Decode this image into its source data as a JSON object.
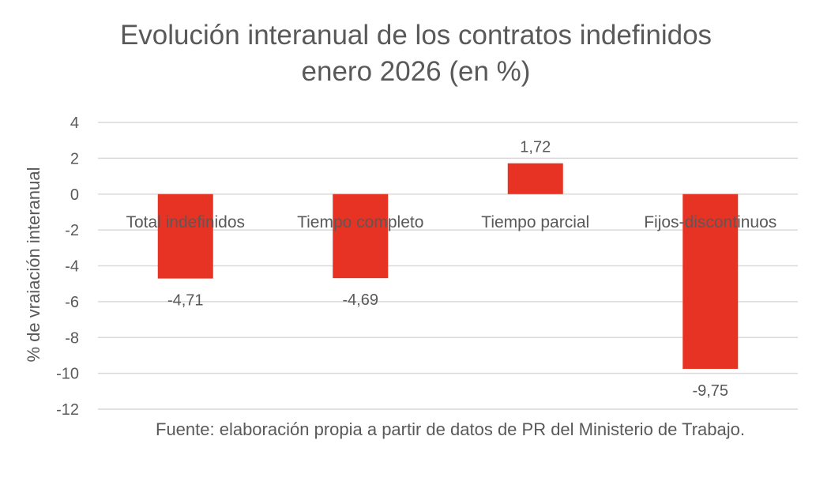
{
  "chart_data": {
    "type": "bar",
    "title": [
      "Evolución interanual de los contratos indefinidos",
      "enero 2026 (en %)"
    ],
    "categories": [
      "Total indefinidos",
      "Tiempo completo",
      "Tiempo parcial",
      "Fijos-discontinuos"
    ],
    "values": [
      -4.71,
      -4.69,
      1.72,
      -9.75
    ],
    "data_labels": [
      "-4,71",
      "-4,69",
      "1,72",
      "-9,75"
    ],
    "xlabel": "",
    "ylabel": "% de vraiación interanual",
    "ylim": [
      -12,
      4
    ],
    "yticks": [
      4,
      2,
      0,
      -2,
      -4,
      -6,
      -8,
      -10,
      -12
    ],
    "grid": true,
    "legend": "none",
    "bar_color": "#E63323",
    "source": "Fuente: elaboración propia a partir de datos de PR del Ministerio de Trabajo."
  }
}
